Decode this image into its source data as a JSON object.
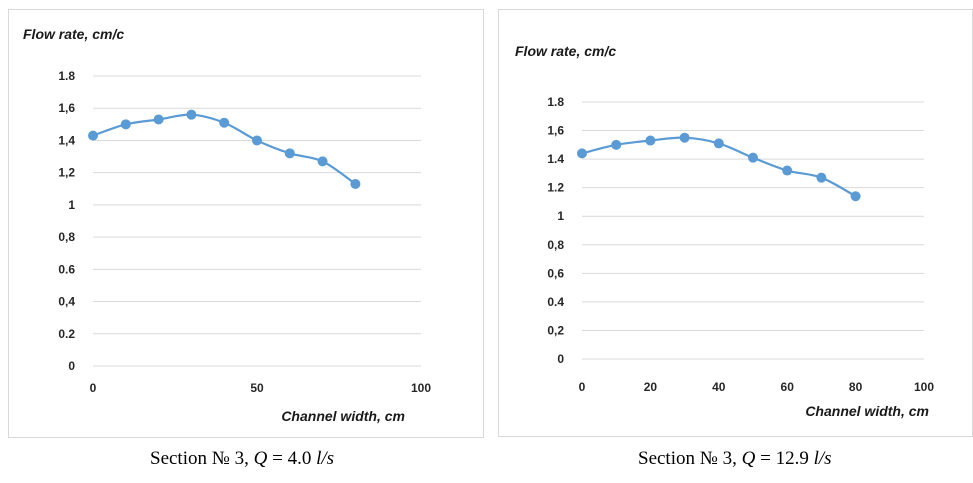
{
  "chart_data": [
    {
      "type": "line",
      "title": "",
      "ylabel": "Flow rate, cm/c",
      "xlabel": "Channel width, cm",
      "xlim": [
        0,
        100
      ],
      "ylim": [
        0,
        1.8
      ],
      "x_ticks": [
        "0",
        "50",
        "100"
      ],
      "y_ticks": [
        "0",
        "0.2",
        "0,4",
        "0.6",
        "0,8",
        "1",
        "1,2",
        "1,4",
        "1,6",
        "1.8"
      ],
      "grid": true,
      "series": [
        {
          "x": [
            0,
            10,
            20,
            30,
            40,
            50,
            60,
            70,
            80
          ],
          "values": [
            1.43,
            1.5,
            1.53,
            1.56,
            1.51,
            1.4,
            1.32,
            1.27,
            1.13
          ],
          "color": "#5b9bd5"
        }
      ],
      "caption": {
        "prefix": "Section № 3, ",
        "q": "Q",
        "eq": " = 4.0 ",
        "unit": "l/s"
      }
    },
    {
      "type": "line",
      "title": "",
      "ylabel": "Flow rate, cm/c",
      "xlabel": "Channel width, cm",
      "xlim": [
        0,
        100
      ],
      "ylim": [
        0,
        1.8
      ],
      "x_ticks": [
        "0",
        "20",
        "40",
        "60",
        "80",
        "100"
      ],
      "y_ticks": [
        "0",
        "0,2",
        "0.4",
        "0,6",
        "0,8",
        "1",
        "1.2",
        "1.4",
        "1,6",
        "1.8"
      ],
      "grid": true,
      "series": [
        {
          "x": [
            0,
            10,
            20,
            30,
            40,
            50,
            60,
            70,
            80
          ],
          "values": [
            1.44,
            1.5,
            1.53,
            1.55,
            1.51,
            1.41,
            1.32,
            1.27,
            1.14
          ],
          "color": "#5b9bd5"
        }
      ],
      "caption": {
        "prefix": "Section № 3, ",
        "q": "Q",
        "eq": " = 12.9 ",
        "unit": "l/s"
      }
    }
  ]
}
